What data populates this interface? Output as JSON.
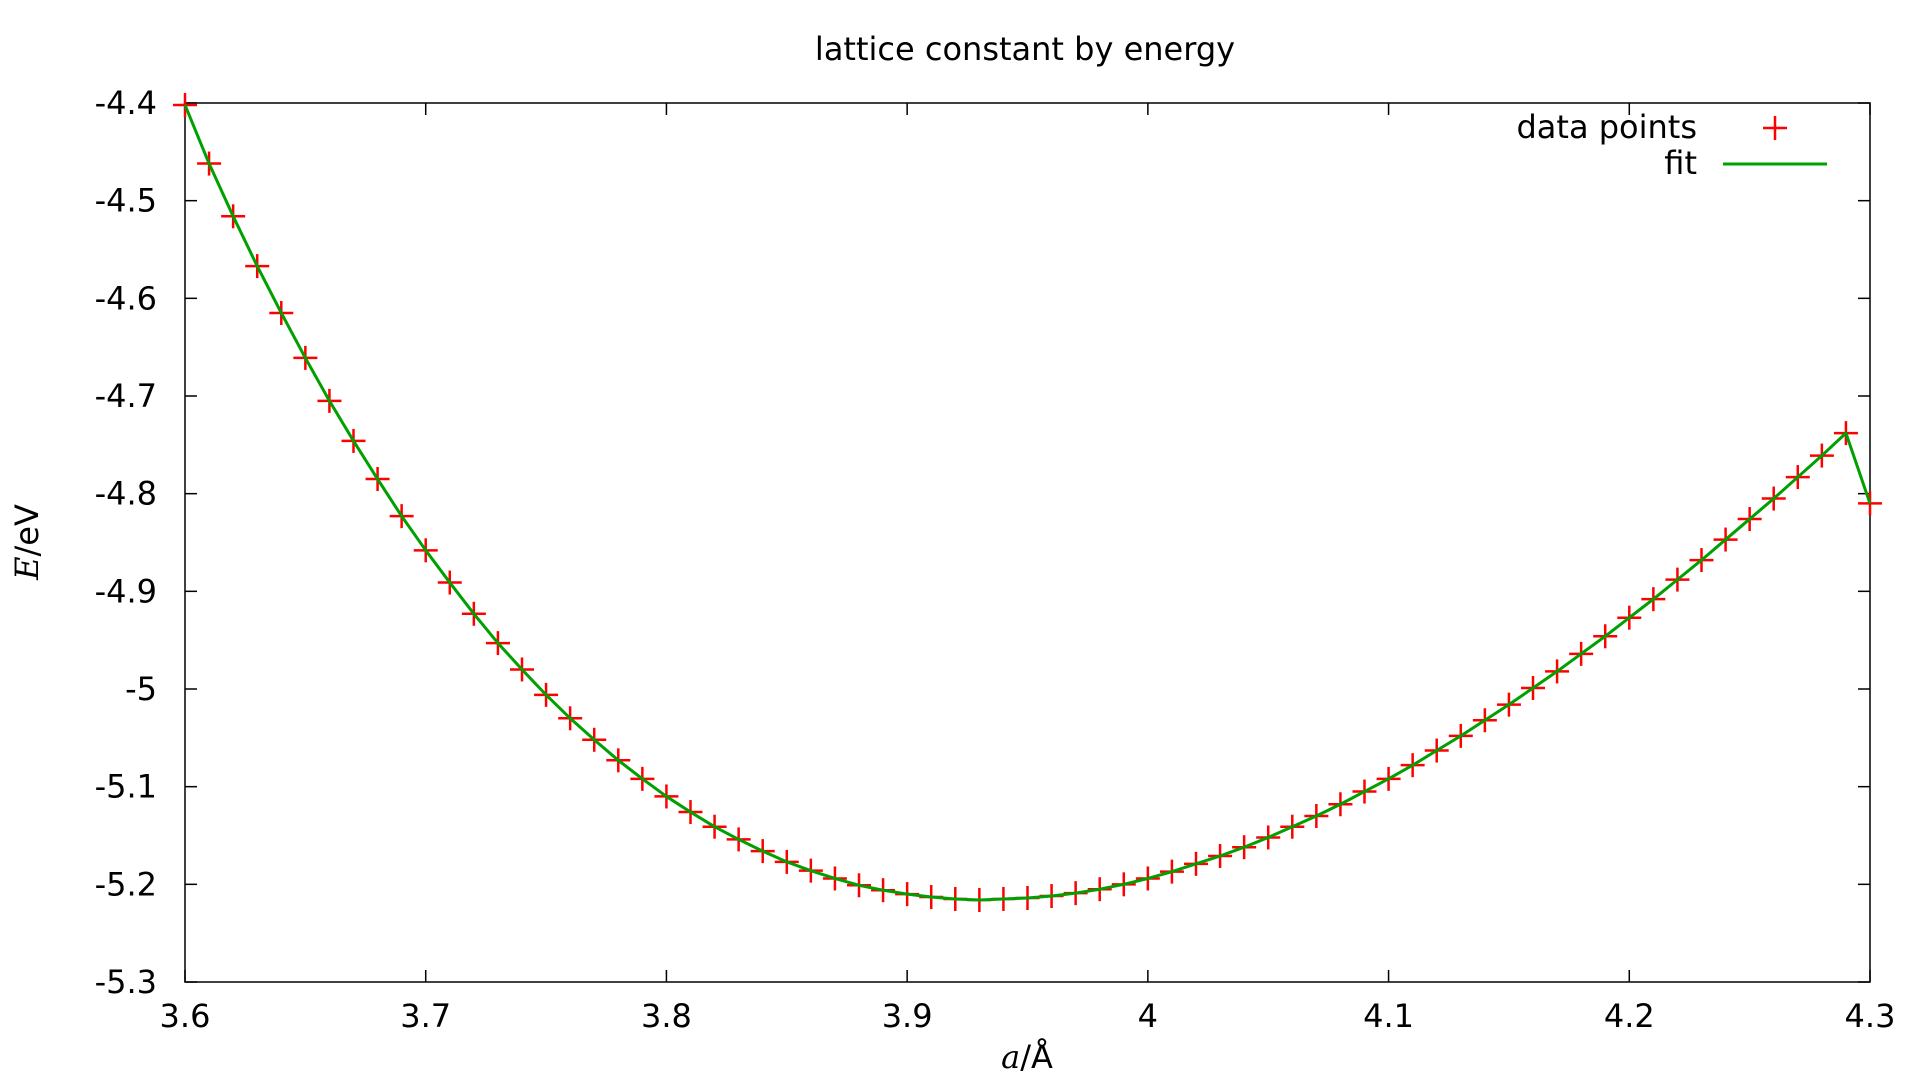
{
  "chart_data": {
    "type": "scatter",
    "title": "lattice constant by energy",
    "xlabel_var": "a",
    "xlabel_unit": "/Å",
    "ylabel_var": "E",
    "ylabel_unit": "/eV",
    "xlim": [
      3.6,
      4.3
    ],
    "ylim": [
      -5.3,
      -4.4
    ],
    "xticks": [
      "3.6",
      "3.7",
      "3.8",
      "3.9",
      "4",
      "4.1",
      "4.2",
      "4.3"
    ],
    "yticks": [
      "-4.4",
      "-4.5",
      "-4.6",
      "-4.7",
      "-4.8",
      "-4.9",
      "-5",
      "-5.1",
      "-5.2",
      "-5.3"
    ],
    "grid": false,
    "legend_position": "top-right",
    "series": [
      {
        "name": "data points",
        "style": "points",
        "marker": "plus",
        "color": "#ff0000",
        "x": [
          3.6,
          3.61,
          3.62,
          3.63,
          3.64,
          3.65,
          3.66,
          3.67,
          3.68,
          3.69,
          3.7,
          3.71,
          3.72,
          3.73,
          3.74,
          3.75,
          3.76,
          3.77,
          3.78,
          3.79,
          3.8,
          3.81,
          3.82,
          3.83,
          3.84,
          3.85,
          3.86,
          3.87,
          3.88,
          3.89,
          3.9,
          3.91,
          3.92,
          3.93,
          3.94,
          3.95,
          3.96,
          3.97,
          3.98,
          3.99,
          4.0,
          4.01,
          4.02,
          4.03,
          4.04,
          4.05,
          4.06,
          4.07,
          4.08,
          4.09,
          4.1,
          4.11,
          4.12,
          4.13,
          4.14,
          4.15,
          4.16,
          4.17,
          4.18,
          4.19,
          4.2,
          4.21,
          4.22,
          4.23,
          4.24,
          4.25,
          4.26,
          4.27,
          4.28,
          4.29,
          4.3
        ],
        "y": [
          -4.402,
          -4.462,
          -4.516,
          -4.567,
          -4.615,
          -4.661,
          -4.705,
          -4.746,
          -4.785,
          -4.823,
          -4.858,
          -4.891,
          -4.923,
          -4.953,
          -4.98,
          -5.006,
          -5.03,
          -5.052,
          -5.073,
          -5.092,
          -5.11,
          -5.126,
          -5.141,
          -5.154,
          -5.166,
          -5.177,
          -5.186,
          -5.194,
          -5.201,
          -5.206,
          -5.21,
          -5.213,
          -5.215,
          -5.216,
          -5.215,
          -5.214,
          -5.212,
          -5.209,
          -5.205,
          -5.2,
          -5.194,
          -5.187,
          -5.179,
          -5.171,
          -5.162,
          -5.152,
          -5.141,
          -5.13,
          -5.118,
          -5.105,
          -5.092,
          -5.078,
          -5.063,
          -5.048,
          -5.032,
          -5.016,
          -4.999,
          -4.982,
          -4.964,
          -4.946,
          -4.927,
          -4.908,
          -4.888,
          -4.868,
          -4.847,
          -4.826,
          -4.805,
          -4.783,
          -4.761,
          -4.738,
          -4.81
        ]
      },
      {
        "name": "fit",
        "style": "line",
        "color": "#00a000",
        "x": [
          3.6,
          3.61,
          3.62,
          3.63,
          3.64,
          3.65,
          3.66,
          3.67,
          3.68,
          3.69,
          3.7,
          3.71,
          3.72,
          3.73,
          3.74,
          3.75,
          3.76,
          3.77,
          3.78,
          3.79,
          3.8,
          3.81,
          3.82,
          3.83,
          3.84,
          3.85,
          3.86,
          3.87,
          3.88,
          3.89,
          3.9,
          3.91,
          3.92,
          3.93,
          3.94,
          3.95,
          3.96,
          3.97,
          3.98,
          3.99,
          4.0,
          4.01,
          4.02,
          4.03,
          4.04,
          4.05,
          4.06,
          4.07,
          4.08,
          4.09,
          4.1,
          4.11,
          4.12,
          4.13,
          4.14,
          4.15,
          4.16,
          4.17,
          4.18,
          4.19,
          4.2,
          4.21,
          4.22,
          4.23,
          4.24,
          4.25,
          4.26,
          4.27,
          4.28,
          4.29,
          4.3
        ],
        "y": [
          -4.402,
          -4.462,
          -4.516,
          -4.567,
          -4.615,
          -4.661,
          -4.705,
          -4.746,
          -4.785,
          -4.823,
          -4.858,
          -4.891,
          -4.923,
          -4.953,
          -4.98,
          -5.006,
          -5.03,
          -5.052,
          -5.073,
          -5.092,
          -5.11,
          -5.126,
          -5.141,
          -5.154,
          -5.166,
          -5.177,
          -5.186,
          -5.194,
          -5.201,
          -5.206,
          -5.21,
          -5.213,
          -5.215,
          -5.216,
          -5.215,
          -5.214,
          -5.212,
          -5.209,
          -5.205,
          -5.2,
          -5.194,
          -5.187,
          -5.179,
          -5.171,
          -5.162,
          -5.152,
          -5.141,
          -5.13,
          -5.118,
          -5.105,
          -5.092,
          -5.078,
          -5.063,
          -5.048,
          -5.032,
          -5.016,
          -4.999,
          -4.982,
          -4.964,
          -4.946,
          -4.927,
          -4.908,
          -4.888,
          -4.868,
          -4.847,
          -4.826,
          -4.805,
          -4.783,
          -4.761,
          -4.738,
          -4.81
        ]
      }
    ]
  }
}
